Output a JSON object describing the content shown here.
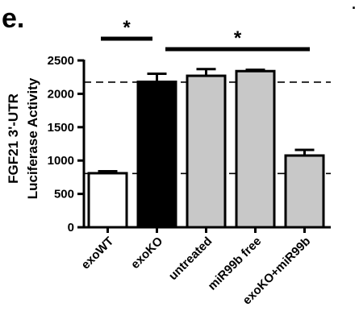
{
  "panel_label": "e.",
  "chart_data": {
    "type": "bar",
    "title": "",
    "xlabel": "",
    "ylabel": "FGF21 3'-UTR",
    "ylabel_line2": "Luciferase Activity",
    "ylim": [
      0,
      2500
    ],
    "yticks": [
      0,
      500,
      1000,
      1500,
      2000,
      2500
    ],
    "grid": false,
    "categories": [
      "exoWT",
      "exoKO",
      "untreated",
      "miR99b free",
      "exoKO+miR99b"
    ],
    "values": [
      810,
      2180,
      2270,
      2340,
      1075
    ],
    "errors": [
      30,
      120,
      100,
      20,
      85
    ],
    "bar_colors": [
      "#ffffff",
      "#000000",
      "#c8c8c8",
      "#c8c8c8",
      "#c8c8c8"
    ],
    "reference_lines": [
      2175,
      805
    ],
    "significance": [
      {
        "from": 0,
        "to": 1,
        "label": "*"
      },
      {
        "from": 1,
        "to": 4,
        "label": "*"
      }
    ]
  }
}
